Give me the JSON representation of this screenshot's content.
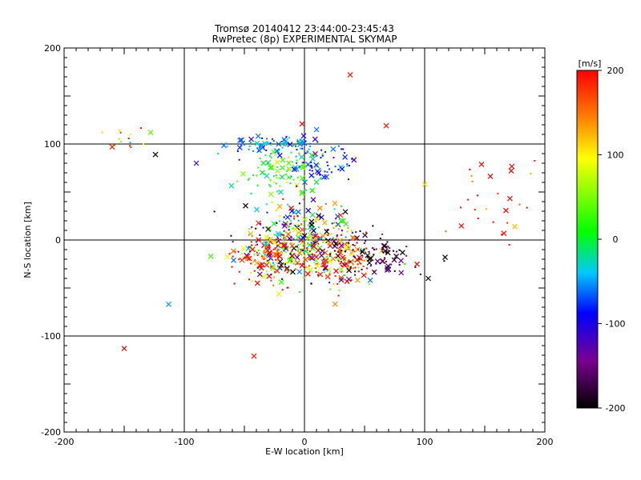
{
  "chart_data": {
    "type": "scatter",
    "title": "Tromsø 20140412 23:44:00-23:45:43",
    "subtitle": "RwPretec (8p) EXPERIMENTAL SKYMAP",
    "xlabel": "E-W location [km]",
    "ylabel": "N-S location [km]",
    "xlim": [
      -200,
      200
    ],
    "ylim": [
      -200,
      200
    ],
    "x_ticks": [
      "-200",
      "-100",
      "0",
      "100",
      "200"
    ],
    "y_ticks": [
      "-200",
      "-100",
      "0",
      "100",
      "200"
    ],
    "grid": true,
    "colorbar": {
      "unit": "[m/s]",
      "range": [
        -200,
        200
      ],
      "ticks": [
        "200",
        "100",
        "0",
        "-100",
        "-200"
      ],
      "colormap": [
        "#000000",
        "#7a0090",
        "#0000ff",
        "#00c8ff",
        "#00ff00",
        "#ffff00",
        "#ff8000",
        "#ff0000"
      ]
    },
    "clusters": [
      {
        "cx": -20,
        "cy": 98,
        "sx": 22,
        "sy": 5,
        "n": 90,
        "v": -60,
        "vs": 30
      },
      {
        "cx": -15,
        "cy": 70,
        "sx": 18,
        "sy": 12,
        "n": 90,
        "v": 20,
        "vs": 35
      },
      {
        "cx": 20,
        "cy": 80,
        "sx": 15,
        "sy": 8,
        "n": 50,
        "v": -90,
        "vs": 30
      },
      {
        "cx": 0,
        "cy": 0,
        "sx": 25,
        "sy": 22,
        "n": 340,
        "v": 0,
        "vs": 150
      },
      {
        "cx": 30,
        "cy": -20,
        "sx": 18,
        "sy": 14,
        "n": 130,
        "v": 170,
        "vs": 60
      },
      {
        "cx": -30,
        "cy": -15,
        "sx": 15,
        "sy": 12,
        "n": 110,
        "v": 170,
        "vs": 60
      },
      {
        "cx": 55,
        "cy": -15,
        "sx": 20,
        "sy": 12,
        "n": 90,
        "v": -180,
        "vs": 40
      },
      {
        "cx": -150,
        "cy": 105,
        "sx": 8,
        "sy": 6,
        "n": 14,
        "v": 130,
        "vs": 80
      },
      {
        "cx": 160,
        "cy": 40,
        "sx": 25,
        "sy": 30,
        "n": 28,
        "v": 180,
        "vs": 40
      }
    ],
    "outliers": [
      {
        "x": 38,
        "y": 172,
        "v": 190
      },
      {
        "x": -42,
        "y": -121,
        "v": 190
      },
      {
        "x": -113,
        "y": -67,
        "v": -50
      },
      {
        "x": -150,
        "y": -113,
        "v": 200
      },
      {
        "x": 117,
        "y": -18,
        "v": -200
      },
      {
        "x": 103,
        "y": -40,
        "v": -200
      },
      {
        "x": 68,
        "y": 119,
        "v": 190
      },
      {
        "x": 10,
        "y": 115,
        "v": -60
      },
      {
        "x": -2,
        "y": 121,
        "v": 200
      },
      {
        "x": 175,
        "y": 14,
        "v": 120
      },
      {
        "x": 172,
        "y": 72,
        "v": 200
      },
      {
        "x": -78,
        "y": -17,
        "v": 30
      },
      {
        "x": -90,
        "y": 80,
        "v": -120
      },
      {
        "x": -124,
        "y": 89,
        "v": -200
      },
      {
        "x": 100,
        "y": 58,
        "v": 110
      },
      {
        "x": -128,
        "y": 112,
        "v": 40
      },
      {
        "x": -160,
        "y": 97,
        "v": 190
      }
    ]
  }
}
